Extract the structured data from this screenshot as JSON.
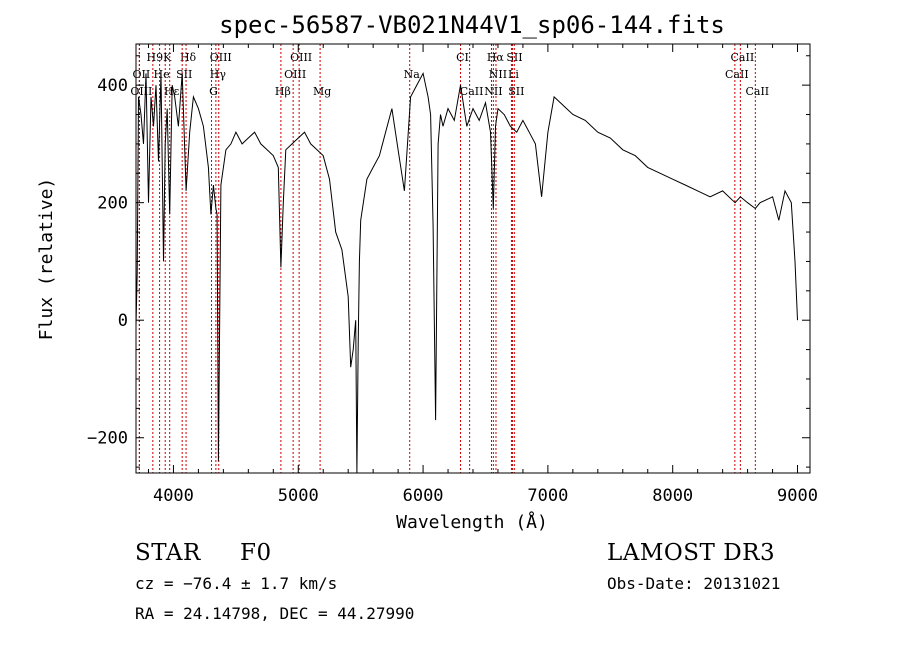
{
  "chart_data": {
    "type": "line",
    "title": "spec-56587-VB021N44V1_sp06-144.fits",
    "xlabel": "Wavelength (Å)",
    "ylabel": "Flux (relative)",
    "xlim": [
      3700,
      9100
    ],
    "ylim": [
      -260,
      470
    ],
    "xticks": [
      4000,
      5000,
      6000,
      7000,
      8000,
      9000
    ],
    "yticks": [
      -200,
      0,
      200,
      400
    ],
    "x": [
      3700,
      3710,
      3720,
      3740,
      3760,
      3780,
      3800,
      3820,
      3840,
      3860,
      3880,
      3900,
      3920,
      3934,
      3950,
      3970,
      3990,
      4010,
      4040,
      4070,
      4101,
      4130,
      4160,
      4200,
      4240,
      4280,
      4300,
      4320,
      4340,
      4350,
      4360,
      4380,
      4420,
      4460,
      4500,
      4550,
      4600,
      4650,
      4700,
      4750,
      4800,
      4840,
      4861,
      4880,
      4900,
      4950,
      5000,
      5050,
      5100,
      5150,
      5200,
      5250,
      5300,
      5350,
      5400,
      5420,
      5440,
      5460,
      5470,
      5480,
      5490,
      5500,
      5550,
      5600,
      5650,
      5700,
      5750,
      5800,
      5850,
      5900,
      5950,
      6000,
      6040,
      6060,
      6080,
      6100,
      6120,
      6140,
      6160,
      6200,
      6250,
      6300,
      6350,
      6400,
      6450,
      6500,
      6540,
      6563,
      6580,
      6600,
      6650,
      6700,
      6750,
      6800,
      6850,
      6900,
      6950,
      7000,
      7050,
      7100,
      7150,
      7200,
      7300,
      7400,
      7500,
      7600,
      7700,
      7800,
      7900,
      8000,
      8100,
      8200,
      8300,
      8400,
      8500,
      8542,
      8600,
      8662,
      8700,
      8800,
      8850,
      8900,
      8950,
      8980,
      9000
    ],
    "values": [
      -10,
      80,
      380,
      350,
      300,
      420,
      200,
      380,
      330,
      400,
      270,
      420,
      100,
      300,
      360,
      180,
      400,
      380,
      330,
      420,
      220,
      320,
      380,
      360,
      330,
      260,
      180,
      230,
      190,
      180,
      -240,
      230,
      290,
      300,
      320,
      300,
      310,
      320,
      300,
      290,
      280,
      260,
      90,
      200,
      290,
      300,
      310,
      320,
      300,
      290,
      280,
      240,
      150,
      120,
      40,
      -80,
      -50,
      0,
      -260,
      -40,
      100,
      170,
      240,
      260,
      280,
      320,
      360,
      290,
      220,
      380,
      400,
      420,
      380,
      350,
      160,
      -170,
      300,
      350,
      330,
      360,
      340,
      400,
      330,
      360,
      340,
      370,
      320,
      190,
      330,
      360,
      350,
      330,
      320,
      340,
      320,
      300,
      210,
      320,
      380,
      370,
      360,
      350,
      340,
      320,
      310,
      290,
      280,
      260,
      250,
      240,
      230,
      220,
      210,
      220,
      200,
      210,
      200,
      190,
      200,
      210,
      170,
      220,
      200,
      100,
      0
    ],
    "lines": [
      {
        "name": "H9",
        "wave": 3835,
        "row": 1
      },
      {
        "name": "K",
        "wave": 3934,
        "row": 1
      },
      {
        "name": "Hδ",
        "wave": 4101,
        "row": 1
      },
      {
        "name": "OIII",
        "wave": 4363,
        "row": 1
      },
      {
        "name": "OIII",
        "wave": 5007,
        "row": 1
      },
      {
        "name": "CI",
        "wave": 6300,
        "row": 1
      },
      {
        "name": "Hα",
        "wave": 6563,
        "row": 1
      },
      {
        "name": "SII",
        "wave": 6716,
        "row": 1
      },
      {
        "name": "CaII",
        "wave": 8542,
        "row": 1
      },
      {
        "name": "OII",
        "wave": 3727,
        "row": 2
      },
      {
        "name": "He",
        "wave": 3889,
        "row": 2
      },
      {
        "name": "SII",
        "wave": 4070,
        "row": 2
      },
      {
        "name": "Hγ",
        "wave": 4340,
        "row": 2
      },
      {
        "name": "OIII",
        "wave": 4959,
        "row": 2
      },
      {
        "name": "Na",
        "wave": 5893,
        "row": 2
      },
      {
        "name": "NII",
        "wave": 6584,
        "row": 2
      },
      {
        "name": "Li",
        "wave": 6708,
        "row": 2
      },
      {
        "name": "CaII",
        "wave": 8498,
        "row": 2
      },
      {
        "name": "OIII",
        "wave": 3727,
        "row": 3
      },
      {
        "name": "Hε",
        "wave": 3970,
        "row": 3
      },
      {
        "name": "G",
        "wave": 4305,
        "row": 3
      },
      {
        "name": "Hβ",
        "wave": 4861,
        "row": 3
      },
      {
        "name": "Mg",
        "wave": 5175,
        "row": 3
      },
      {
        "name": "CaII",
        "wave": 6373,
        "row": 3
      },
      {
        "name": "NII",
        "wave": 6548,
        "row": 3
      },
      {
        "name": "SII",
        "wave": 6731,
        "row": 3
      },
      {
        "name": "CaII",
        "wave": 8662,
        "row": 3
      }
    ]
  },
  "info": {
    "object_class": "STAR",
    "subclass": "F0",
    "redshift": "cz = −76.4 ± 1.7 km/s",
    "coordinates": "RA =  24.14798, DEC =  44.27990",
    "survey": "LAMOST DR3",
    "obs_date": "Obs-Date: 20131021"
  },
  "colors": {
    "spectrum": "#000000",
    "line_markers": "#cc0000",
    "axes": "#000000"
  }
}
